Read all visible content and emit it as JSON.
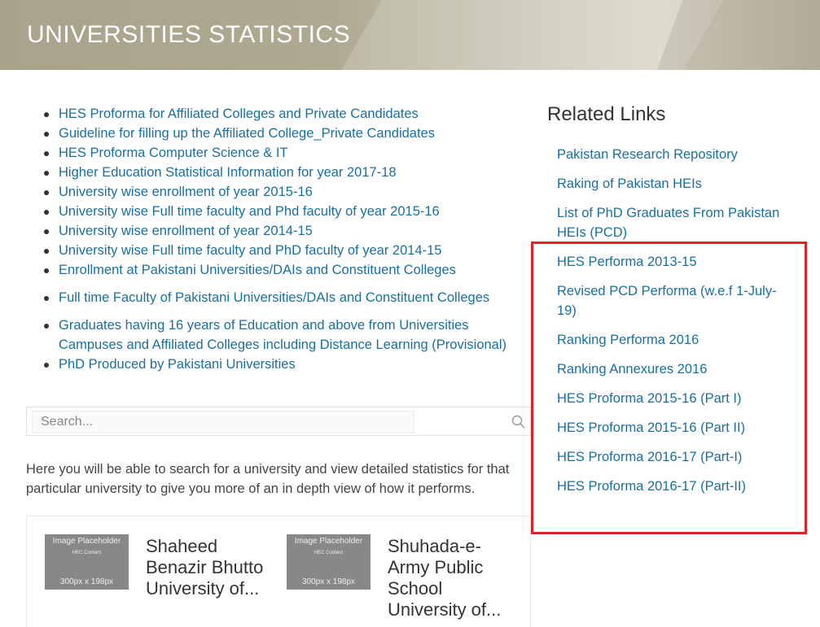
{
  "header": {
    "title": "UNIVERSITIES STATISTICS"
  },
  "main_links": [
    "HES Proforma for Affiliated Colleges and Private Candidates",
    "Guideline for filling up the Affiliated College_Private Candidates",
    "HES Proforma Computer Science & IT",
    "Higher Education Statistical Information for year 2017-18",
    "University wise enrollment of year 2015-16",
    "University wise Full time faculty and Phd faculty of year 2015-16",
    "University wise enrollment of year 2014-15",
    "University wise Full time faculty and PhD faculty of year 2014-15",
    "Enrollment at Pakistani Universities/DAIs and Constituent Colleges",
    "Full time Faculty of Pakistani Universities/DAIs and Constituent Colleges",
    "Graduates having 16 years of Education and above from Universities Campuses and Affiliated Colleges including Distance Learning (Provisional)",
    "PhD Produced by Pakistani Universities"
  ],
  "search": {
    "placeholder": "Search...",
    "icon": "search-icon"
  },
  "intro_text": "Here you will be able to search for a university and view detailed statistics for that particular university to give you more of an in depth view of how it performs.",
  "cards": [
    {
      "thumb_title": "Image Placeholder",
      "thumb_sub": "HEC Content",
      "thumb_dim": "300px x 198px",
      "name": "Shaheed Benazir Bhutto University of...",
      "dash": "-"
    },
    {
      "thumb_title": "Image Placeholder",
      "thumb_sub": "HEC Content",
      "thumb_dim": "300px x 198px",
      "name": "Shuhada-e-Army Public School University of...",
      "dash": ""
    }
  ],
  "related": {
    "title": "Related Links",
    "items": [
      "Pakistan Research Repository",
      "Raking of Pakistan HEIs",
      "List of PhD Graduates From Pakistan HEIs (PCD)",
      "HES Performa 2013-15",
      "Revised PCD Performa (w.e.f 1-July-19)",
      "Ranking Performa 2016",
      "Ranking Annexures 2016",
      "HES Proforma 2015-16 (Part I)",
      "HES Proforma 2015-16 (Part II)",
      "HES Proforma 2016-17 (Part-I)",
      "HES Proforma 2016-17 (Part-II)"
    ]
  },
  "colors": {
    "link": "#1a6f9e",
    "highlight": "#e0232a",
    "banner": "#a9a38b"
  }
}
